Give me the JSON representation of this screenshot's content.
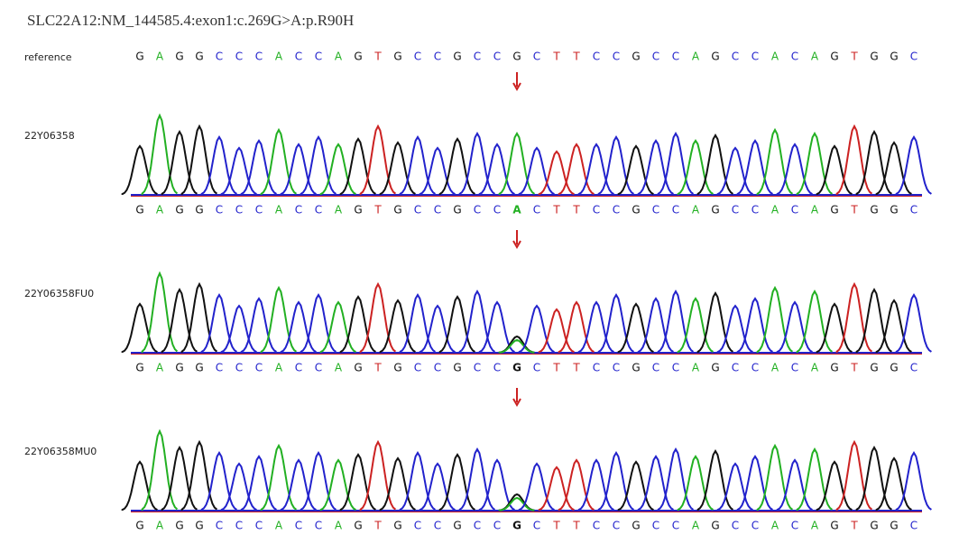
{
  "title": "SLC22A12:NM_144585.4:exon1:c.269G>A:p.R90H",
  "reference": {
    "label": "reference",
    "sequence": [
      "G",
      "A",
      "G",
      "G",
      "C",
      "C",
      "C",
      "A",
      "C",
      "C",
      "A",
      "G",
      "T",
      "G",
      "C",
      "C",
      "G",
      "C",
      "C",
      "G",
      "C",
      "T",
      "T",
      "C",
      "C",
      "G",
      "C",
      "C",
      "A",
      "G",
      "C",
      "C",
      "A",
      "C",
      "A",
      "G",
      "T",
      "G",
      "G",
      "C"
    ]
  },
  "samples": [
    {
      "label": "22Y06358",
      "sequence": [
        "G",
        "A",
        "G",
        "G",
        "C",
        "C",
        "C",
        "A",
        "C",
        "C",
        "A",
        "G",
        "T",
        "G",
        "C",
        "C",
        "G",
        "C",
        "C",
        "A",
        "C",
        "T",
        "T",
        "C",
        "C",
        "G",
        "C",
        "C",
        "A",
        "G",
        "C",
        "C",
        "A",
        "C",
        "A",
        "G",
        "T",
        "G",
        "G",
        "C"
      ]
    },
    {
      "label": "22Y06358FU0",
      "sequence": [
        "G",
        "A",
        "G",
        "G",
        "C",
        "C",
        "C",
        "A",
        "C",
        "C",
        "A",
        "G",
        "T",
        "G",
        "C",
        "C",
        "G",
        "C",
        "C",
        "G",
        "C",
        "T",
        "T",
        "C",
        "C",
        "G",
        "C",
        "C",
        "A",
        "G",
        "C",
        "C",
        "A",
        "C",
        "A",
        "G",
        "T",
        "G",
        "G",
        "C"
      ]
    },
    {
      "label": "22Y06358MU0",
      "sequence": [
        "G",
        "A",
        "G",
        "G",
        "C",
        "C",
        "C",
        "A",
        "C",
        "C",
        "A",
        "G",
        "T",
        "G",
        "C",
        "C",
        "G",
        "C",
        "C",
        "G",
        "C",
        "T",
        "T",
        "C",
        "C",
        "G",
        "C",
        "C",
        "A",
        "G",
        "C",
        "C",
        "A",
        "C",
        "A",
        "G",
        "T",
        "G",
        "G",
        "C"
      ]
    }
  ]
}
